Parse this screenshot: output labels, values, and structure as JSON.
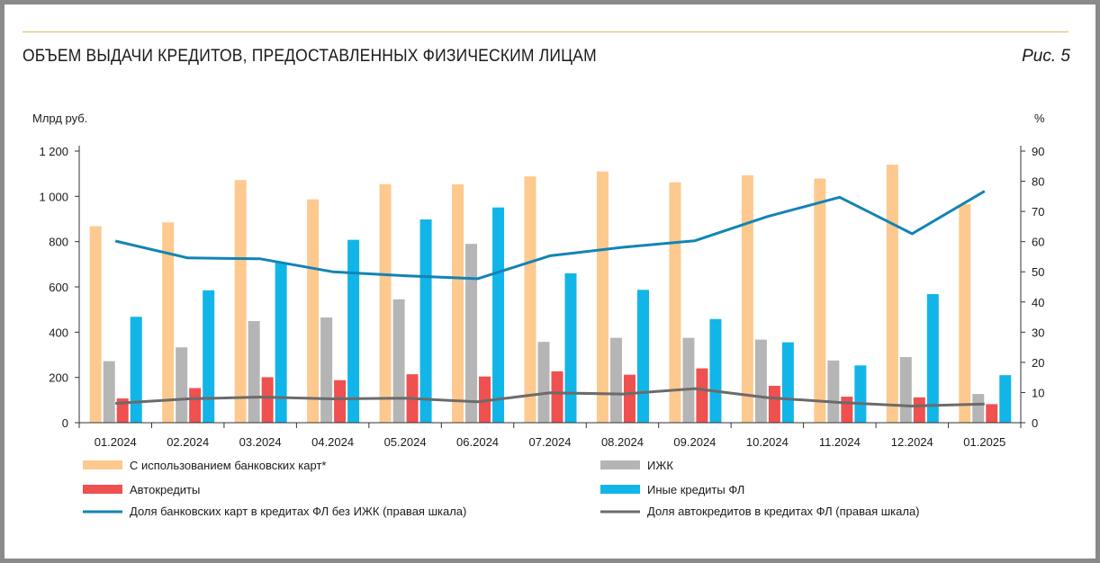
{
  "header": {
    "title": "ОБЪЕМ ВЫДАЧИ КРЕДИТОВ, ПРЕДОСТАВЛЕННЫХ ФИЗИЧЕСКИМ ЛИЦАМ",
    "figure_label": "Рис. 5"
  },
  "colors": {
    "cards": "#fdc98f",
    "izhk": "#b5b5b5",
    "auto": "#ef5050",
    "other": "#12b5e8",
    "share_cards": "#1284b4",
    "share_auto": "#6b6b6b",
    "top_rule": "#e2b96a"
  },
  "chart_data": {
    "type": "bar",
    "ylabel": "Млрд руб.",
    "y2label": "%",
    "ylim": [
      0,
      1200
    ],
    "y2lim": [
      0,
      90
    ],
    "yticks": [
      "0",
      "200",
      "400",
      "600",
      "800",
      "1 000",
      "1 200"
    ],
    "y2ticks": [
      "0",
      "10",
      "20",
      "30",
      "40",
      "50",
      "60",
      "70",
      "80",
      "90"
    ],
    "categories": [
      "01.2024",
      "02.2024",
      "03.2024",
      "04.2024",
      "05.2024",
      "06.2024",
      "07.2024",
      "08.2024",
      "09.2024",
      "10.2024",
      "11.2024",
      "12.2024",
      "01.2025"
    ],
    "series": [
      {
        "name": "С использованием банковских карт*",
        "kind": "bar",
        "color_key": "cards",
        "values": [
          868,
          885,
          1072,
          987,
          1054,
          1053,
          1088,
          1110,
          1062,
          1093,
          1079,
          1140,
          965
        ]
      },
      {
        "name": "ИЖК",
        "kind": "bar",
        "color_key": "izhk",
        "values": [
          272,
          333,
          449,
          465,
          545,
          790,
          357,
          375,
          375,
          367,
          275,
          290,
          127
        ]
      },
      {
        "name": "Автокредиты",
        "kind": "bar",
        "color_key": "auto",
        "values": [
          107,
          153,
          201,
          188,
          214,
          204,
          227,
          212,
          240,
          163,
          115,
          112,
          82
        ]
      },
      {
        "name": "Иные кредиты ФЛ",
        "kind": "bar",
        "color_key": "other",
        "values": [
          468,
          585,
          706,
          808,
          898,
          951,
          660,
          587,
          458,
          355,
          253,
          568,
          210
        ]
      },
      {
        "name": "Доля банковских карт в кредитах ФЛ без ИЖК (правая шкала)",
        "kind": "line",
        "axis": "right",
        "color_key": "share_cards",
        "values": [
          60.2,
          54.6,
          54.3,
          50.0,
          48.7,
          47.7,
          55.3,
          58.1,
          60.3,
          68.3,
          74.7,
          62.6,
          76.7
        ]
      },
      {
        "name": "Доля автокредитов в кредитах ФЛ (правая шкала)",
        "kind": "line",
        "axis": "right",
        "color_key": "share_auto",
        "values": [
          6.4,
          7.9,
          8.5,
          7.9,
          8.1,
          6.9,
          9.9,
          9.5,
          11.3,
          8.3,
          6.7,
          5.5,
          6.2
        ]
      }
    ],
    "legend_position": "bottom"
  }
}
